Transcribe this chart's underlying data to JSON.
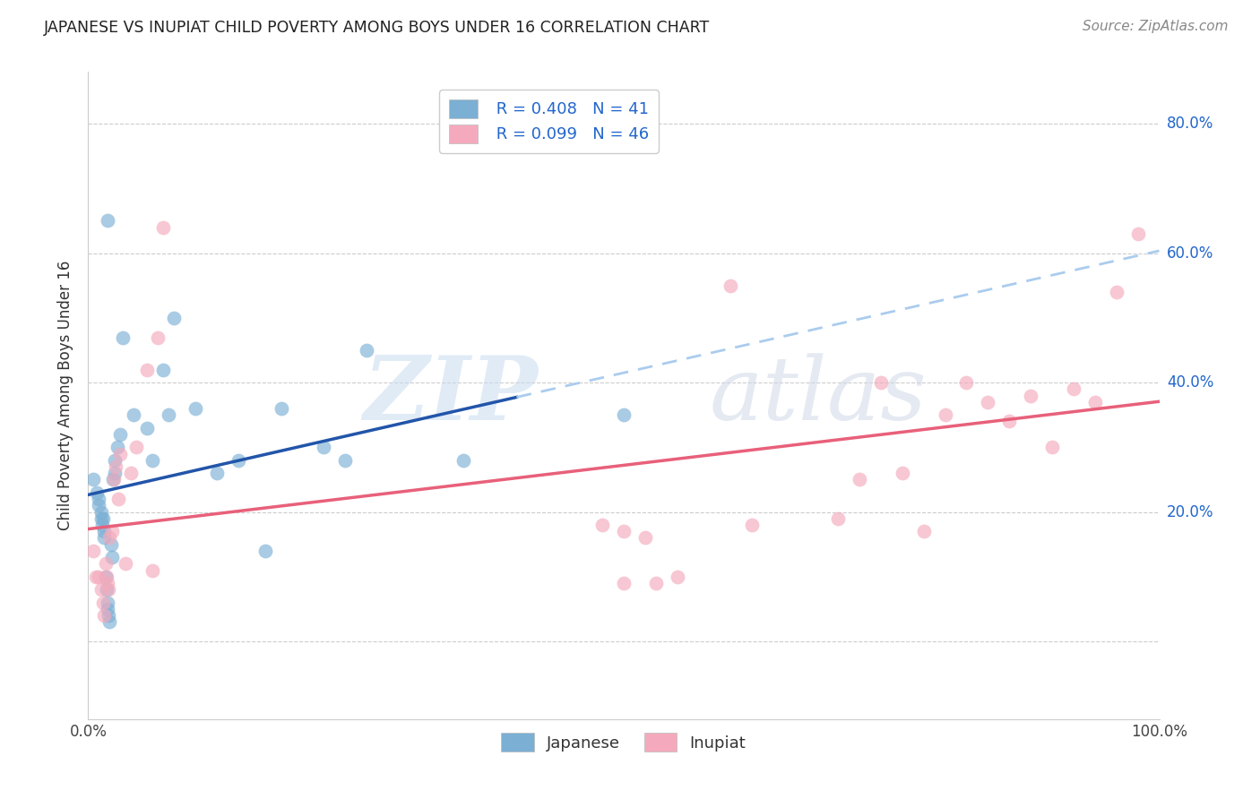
{
  "title": "JAPANESE VS INUPIAT CHILD POVERTY AMONG BOYS UNDER 16 CORRELATION CHART",
  "source": "Source: ZipAtlas.com",
  "ylabel": "Child Poverty Among Boys Under 16",
  "watermark_zip": "ZIP",
  "watermark_atlas": "atlas",
  "xlim": [
    0.0,
    1.0
  ],
  "ylim": [
    -0.12,
    0.88
  ],
  "ytick_positions": [
    0.2,
    0.4,
    0.6,
    0.8
  ],
  "ytick_labels": [
    "20.0%",
    "40.0%",
    "60.0%",
    "80.0%"
  ],
  "legend_r1": "R = 0.408",
  "legend_n1": "N = 41",
  "legend_r2": "R = 0.099",
  "legend_n2": "N = 46",
  "blue_scatter": "#7BAFD4",
  "pink_scatter": "#F4AABC",
  "line_blue_solid": "#2255AA",
  "line_blue_dashed": "#AACCEE",
  "line_pink": "#E8607A",
  "japanese_x": [
    0.005,
    0.008,
    0.01,
    0.01,
    0.012,
    0.012,
    0.013,
    0.014,
    0.015,
    0.015,
    0.016,
    0.017,
    0.018,
    0.018,
    0.019,
    0.02,
    0.021,
    0.022,
    0.023,
    0.025,
    0.025,
    0.027,
    0.03,
    0.032,
    0.042,
    0.055,
    0.06,
    0.07,
    0.075,
    0.08,
    0.1,
    0.12,
    0.14,
    0.165,
    0.18,
    0.22,
    0.24,
    0.26,
    0.5,
    0.35,
    0.018
  ],
  "japanese_y": [
    0.25,
    0.23,
    0.22,
    0.21,
    0.2,
    0.19,
    0.18,
    0.19,
    0.17,
    0.16,
    0.1,
    0.08,
    0.06,
    0.05,
    0.04,
    0.03,
    0.15,
    0.13,
    0.25,
    0.26,
    0.28,
    0.3,
    0.32,
    0.47,
    0.35,
    0.33,
    0.28,
    0.42,
    0.35,
    0.5,
    0.36,
    0.26,
    0.28,
    0.14,
    0.36,
    0.3,
    0.28,
    0.45,
    0.35,
    0.28,
    0.65
  ],
  "inupiat_x": [
    0.005,
    0.007,
    0.01,
    0.012,
    0.014,
    0.015,
    0.016,
    0.017,
    0.018,
    0.019,
    0.02,
    0.022,
    0.024,
    0.026,
    0.028,
    0.03,
    0.035,
    0.04,
    0.045,
    0.055,
    0.06,
    0.065,
    0.07,
    0.48,
    0.5,
    0.52,
    0.6,
    0.62,
    0.7,
    0.72,
    0.74,
    0.76,
    0.78,
    0.8,
    0.82,
    0.84,
    0.86,
    0.88,
    0.9,
    0.92,
    0.94,
    0.96,
    0.98,
    0.5,
    0.53,
    0.55
  ],
  "inupiat_y": [
    0.14,
    0.1,
    0.1,
    0.08,
    0.06,
    0.04,
    0.12,
    0.1,
    0.09,
    0.08,
    0.16,
    0.17,
    0.25,
    0.27,
    0.22,
    0.29,
    0.12,
    0.26,
    0.3,
    0.42,
    0.11,
    0.47,
    0.64,
    0.18,
    0.17,
    0.16,
    0.55,
    0.18,
    0.19,
    0.25,
    0.4,
    0.26,
    0.17,
    0.35,
    0.4,
    0.37,
    0.34,
    0.38,
    0.3,
    0.39,
    0.37,
    0.54,
    0.63,
    0.09,
    0.09,
    0.1
  ]
}
